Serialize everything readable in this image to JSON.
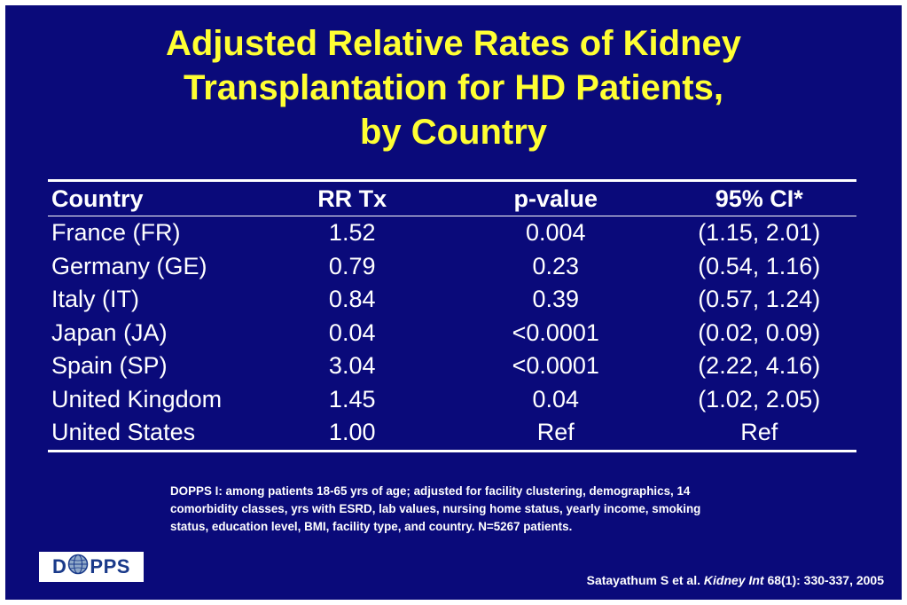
{
  "title": {
    "line1": "Adjusted Relative Rates of Kidney",
    "line2": "Transplantation for HD Patients,",
    "line3": "by Country"
  },
  "table": {
    "headers": [
      "Country",
      "RR Tx",
      "p-value",
      "95% CI*"
    ],
    "rows": [
      [
        "France (FR)",
        "1.52",
        "0.004",
        "(1.15, 2.01)"
      ],
      [
        "Germany (GE)",
        "0.79",
        "0.23",
        "(0.54, 1.16)"
      ],
      [
        "Italy (IT)",
        "0.84",
        "0.39",
        "(0.57, 1.24)"
      ],
      [
        "Japan (JA)",
        "0.04",
        "<0.0001",
        "(0.02, 0.09)"
      ],
      [
        "Spain (SP)",
        "3.04",
        "<0.0001",
        "(2.22, 4.16)"
      ],
      [
        "United Kingdom",
        "1.45",
        "0.04",
        "(1.02, 2.05)"
      ],
      [
        "United States",
        "1.00",
        "Ref",
        "Ref"
      ]
    ]
  },
  "footnote": {
    "line1": "DOPPS I:  among patients 18-65 yrs of age;  adjusted for facility clustering, demographics, 14",
    "line2": "comorbidity classes, yrs with ESRD, lab values, nursing home status, yearly income, smoking",
    "line3": "status, education level, BMI, facility type, and country.  N=5267 patients."
  },
  "logo": {
    "left": "D",
    "right": "PPS"
  },
  "citation": {
    "authors": "Satayathum S et al. ",
    "journal": "Kidney Int",
    "details": " 68(1): 330-337, 2005"
  },
  "colors": {
    "background": "#0a0a7a",
    "title": "#ffff33",
    "text": "#ffffff",
    "logo_text": "#1a3a8a"
  }
}
